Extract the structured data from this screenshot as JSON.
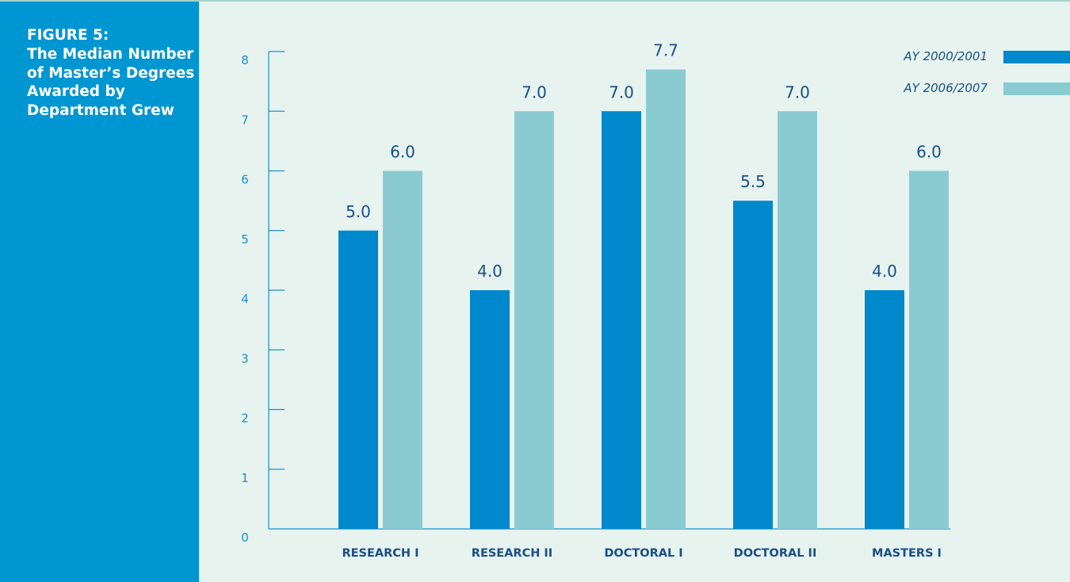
{
  "figure": {
    "label": "FIGURE 5:",
    "title": "The Median Number of Master’s Degrees Awarded by Department Grew"
  },
  "colors": {
    "background": "#e6f3ef",
    "sidebar": "#0096d2",
    "series_2000": "#0088cc",
    "series_2006": "#8acbd1",
    "axis": "#1f8fc6",
    "text": "#1a4e86"
  },
  "chart_data": {
    "type": "bar",
    "title": "",
    "xlabel": "",
    "ylabel": "",
    "categories": [
      "RESEARCH I",
      "RESEARCH II",
      "DOCTORAL I",
      "DOCTORAL II",
      "MASTERS I"
    ],
    "series": [
      {
        "name": "AY 2000/2001",
        "values": [
          5.0,
          4.0,
          7.0,
          5.5,
          4.0
        ],
        "labels": [
          "5.0",
          "4.0",
          "7.0",
          "5.5",
          "4.0"
        ]
      },
      {
        "name": "AY 2006/2007",
        "values": [
          6.0,
          7.0,
          7.7,
          7.0,
          6.0
        ],
        "labels": [
          "6.0",
          "7.0",
          "7.7",
          "7.0",
          "6.0"
        ]
      }
    ],
    "ylim": [
      0,
      8
    ],
    "yticks": [
      "0",
      "1",
      "2",
      "3",
      "4",
      "5",
      "6",
      "7",
      "8"
    ],
    "grid": false,
    "legend_position": "top-right"
  }
}
